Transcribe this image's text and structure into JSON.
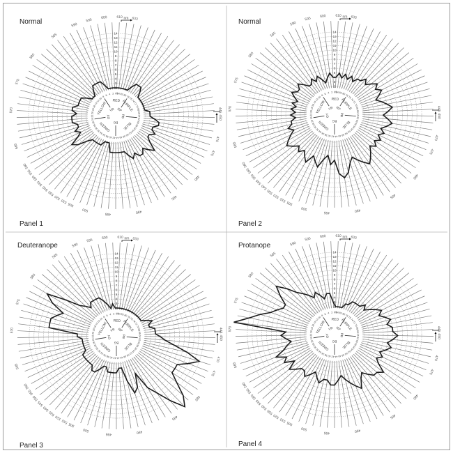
{
  "figure": {
    "frame_color": "#9a9a9a",
    "line_color": "#1a1a1a",
    "nm_label": "nm"
  },
  "scale": {
    "score_ticks": [
      2,
      3,
      4,
      5,
      6,
      7,
      8,
      9,
      10,
      11,
      12,
      13,
      14
    ],
    "cap_count": 85,
    "cap_number_labels": [
      85,
      2,
      4,
      6,
      8,
      10,
      12,
      14,
      16,
      18,
      20,
      22,
      24,
      26,
      28,
      30,
      32,
      34,
      36,
      38,
      40,
      42,
      44,
      46,
      48,
      50,
      52,
      54,
      56,
      58,
      60,
      62,
      64,
      66,
      68,
      70,
      72,
      74,
      76,
      78,
      80,
      82,
      84
    ],
    "hue_labels": [
      {
        "text": "RED",
        "cap": 85
      },
      {
        "text": "YELLOW",
        "cap": 15
      },
      {
        "text": "GREEN",
        "cap": 33
      },
      {
        "text": "BLUE",
        "cap": 54
      },
      {
        "text": "PURPLE",
        "cap": 74
      }
    ],
    "ray_labels": [
      {
        "text": "YR",
        "cap": 8
      },
      {
        "text": "GY",
        "cap": 24
      },
      {
        "text": "BG",
        "cap": 43
      },
      {
        "text": "PB",
        "cap": 63
      },
      {
        "text": "RP",
        "cap": 78
      }
    ],
    "wavelength_labels": [
      {
        "text": "610",
        "cap": 85
      },
      {
        "text": "633",
        "cap": 83
      },
      {
        "text": "600",
        "cap": 2
      },
      {
        "text": "595",
        "cap": 4
      },
      {
        "text": "590",
        "cap": 6
      },
      {
        "text": "585",
        "cap": 9
      },
      {
        "text": "580",
        "cap": 13
      },
      {
        "text": "575",
        "cap": 17
      },
      {
        "text": "570",
        "cap": 21
      },
      {
        "text": "565",
        "cap": 26
      },
      {
        "text": "560",
        "cap": 29
      },
      {
        "text": "555",
        "cap": 30
      },
      {
        "text": "550",
        "cap": 31
      },
      {
        "text": "545",
        "cap": 32
      },
      {
        "text": "540",
        "cap": 33
      },
      {
        "text": "530",
        "cap": 34
      },
      {
        "text": "520",
        "cap": 35
      },
      {
        "text": "510",
        "cap": 36
      },
      {
        "text": "505",
        "cap": 37
      },
      {
        "text": "500",
        "cap": 39
      },
      {
        "text": "495",
        "cap": 42
      },
      {
        "text": "490",
        "cap": 46
      },
      {
        "text": "485",
        "cap": 51
      },
      {
        "text": "480",
        "cap": 55
      },
      {
        "text": "475",
        "cap": 59
      },
      {
        "text": "470",
        "cap": 61
      },
      {
        "text": "450",
        "cap": 64
      },
      {
        "text": "445",
        "cap": 65
      }
    ]
  },
  "chart_data": [
    {
      "type": "radar",
      "title": "Normal",
      "caption": "Panel 1",
      "scores": [
        2,
        2,
        2,
        2,
        3,
        4,
        4,
        4,
        4,
        3,
        2,
        2,
        2,
        3,
        4,
        4,
        4,
        4,
        5,
        5,
        4,
        5,
        5,
        5,
        4,
        4,
        5,
        4,
        5,
        7,
        6,
        4,
        3,
        3,
        3,
        3,
        3,
        2,
        2,
        2,
        4,
        4,
        4,
        4,
        4,
        4,
        5,
        6,
        5,
        6,
        6,
        5,
        6,
        7,
        5,
        4,
        4,
        5,
        4,
        4,
        5,
        5,
        4,
        3,
        3,
        3,
        2,
        2,
        2,
        2,
        2,
        2,
        2,
        2,
        3,
        4,
        4,
        4,
        3,
        2,
        2,
        2,
        2,
        2,
        2
      ]
    },
    {
      "type": "radar",
      "title": "Normal",
      "caption": "Panel 2",
      "scores": [
        4,
        5,
        4,
        3,
        4,
        5,
        4,
        5,
        4,
        4,
        5,
        6,
        5,
        5,
        6,
        5,
        4,
        5,
        4,
        5,
        4,
        5,
        4,
        5,
        5,
        6,
        5,
        6,
        7,
        8,
        7,
        6,
        7,
        6,
        7,
        8,
        6,
        7,
        8,
        6,
        5,
        7,
        6,
        9,
        10,
        9,
        7,
        6,
        7,
        8,
        9,
        8,
        7,
        6,
        7,
        6,
        7,
        6,
        7,
        6,
        7,
        8,
        7,
        6,
        7,
        8,
        7,
        6,
        5,
        6,
        7,
        6,
        7,
        6,
        5,
        6,
        5,
        5,
        4,
        5,
        4,
        5,
        4,
        5,
        4
      ]
    },
    {
      "type": "radar",
      "title": "Deuteranope",
      "caption": "Panel 3",
      "scores": [
        2,
        3,
        2,
        3,
        4,
        5,
        5,
        5,
        5,
        4,
        5,
        6,
        9,
        13,
        11,
        8,
        9,
        10,
        10,
        10,
        4,
        4,
        3,
        3,
        3,
        3,
        3,
        3,
        4,
        4,
        4,
        4,
        4,
        4,
        5,
        5,
        4,
        3,
        3,
        4,
        4,
        4,
        4,
        3,
        3,
        6,
        9,
        8,
        5,
        9,
        11,
        14,
        17,
        15,
        12,
        10,
        10,
        10,
        12,
        14,
        11,
        8,
        6,
        5,
        4,
        4,
        4,
        3,
        3,
        4,
        3,
        2,
        2,
        2,
        2,
        2,
        2,
        2,
        2,
        2,
        2,
        2,
        2,
        2,
        2
      ]
    },
    {
      "type": "radar",
      "title": "Protanope",
      "caption": "Panel 4",
      "scores": [
        3,
        5,
        5,
        4,
        5,
        6,
        5,
        6,
        7,
        8,
        10,
        12,
        10,
        8,
        8,
        9,
        10,
        12,
        14,
        17,
        6,
        7,
        6,
        5,
        6,
        7,
        9,
        7,
        8,
        6,
        8,
        7,
        6,
        6,
        7,
        6,
        5,
        6,
        7,
        6,
        6,
        7,
        7,
        6,
        5,
        6,
        7,
        8,
        9,
        7,
        6,
        7,
        8,
        8,
        9,
        7,
        6,
        7,
        6,
        7,
        8,
        7,
        8,
        9,
        8,
        8,
        7,
        8,
        7,
        6,
        7,
        6,
        5,
        4,
        5,
        4,
        4,
        4,
        4,
        3,
        3,
        2,
        2,
        2,
        2
      ]
    }
  ]
}
